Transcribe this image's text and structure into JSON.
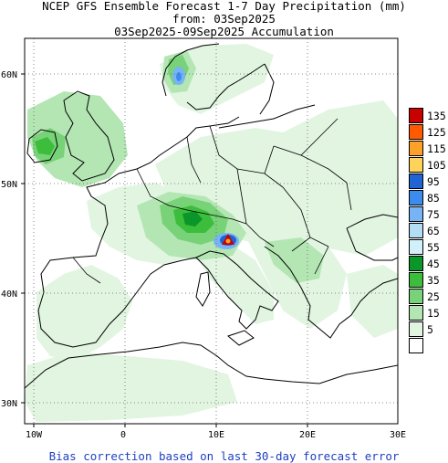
{
  "header": {
    "line1": "NCEP GFS Ensemble Forecast 1-7 Day Precipitation (mm)",
    "line2": "from: 03Sep2025",
    "line3": "03Sep2025-09Sep2025 Accumulation"
  },
  "footer": "Bias correction based on last 30-day forecast error",
  "axes": {
    "lon_labels": [
      "10W",
      "0",
      "10E",
      "20E",
      "30E"
    ],
    "lon_values": [
      -10,
      0,
      10,
      20,
      30
    ],
    "lat_labels": [
      "30N",
      "40N",
      "50N",
      "60N"
    ],
    "lat_values": [
      30,
      40,
      50,
      60
    ],
    "lon_range": [
      -11,
      30
    ],
    "lat_range": [
      28,
      63
    ]
  },
  "legend": {
    "levels": [
      {
        "label": "135",
        "color": "#c80000"
      },
      {
        "label": "125",
        "color": "#ff5a00"
      },
      {
        "label": "115",
        "color": "#ffa028"
      },
      {
        "label": "105",
        "color": "#ffd25a"
      },
      {
        "label": "95",
        "color": "#1f64d2"
      },
      {
        "label": "85",
        "color": "#3c8cf0"
      },
      {
        "label": "75",
        "color": "#78b4f5"
      },
      {
        "label": "65",
        "color": "#b4dcf5"
      },
      {
        "label": "55",
        "color": "#d2f0fa"
      },
      {
        "label": "45",
        "color": "#0a9628"
      },
      {
        "label": "35",
        "color": "#3cbe3c"
      },
      {
        "label": "25",
        "color": "#78d278"
      },
      {
        "label": "15",
        "color": "#b4e6b4"
      },
      {
        "label": "5",
        "color": "#e1f5e1"
      },
      {
        "label": "",
        "color": "#ffffff"
      }
    ]
  }
}
